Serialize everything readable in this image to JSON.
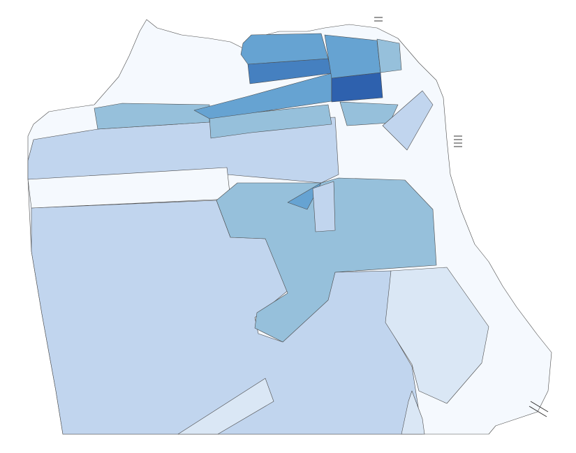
{
  "map": {
    "palette": [
      "#f5f9fe",
      "#dae7f5",
      "#c1d5ee",
      "#96c0db",
      "#66a3d2",
      "#4580c0",
      "#2e61ae"
    ]
  }
}
